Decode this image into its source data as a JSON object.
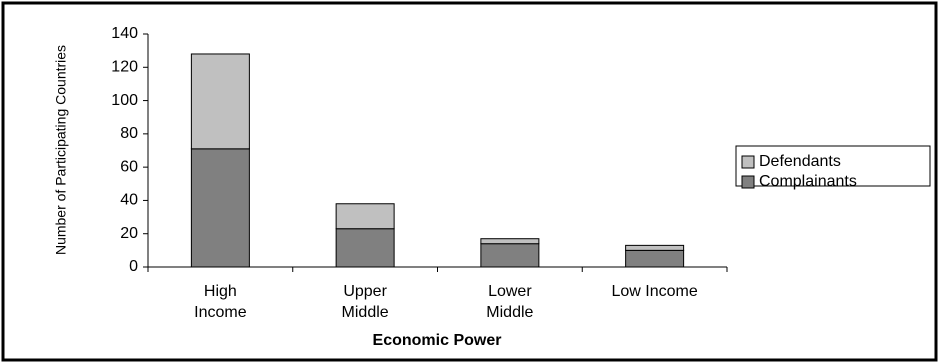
{
  "chart_data": {
    "type": "stacked_bar",
    "categories": [
      "High\nIncome",
      "Upper\nMiddle",
      "Lower\nMiddle",
      "Low Income"
    ],
    "series": [
      {
        "name": "Complainants",
        "color": "#808080",
        "values": [
          71,
          23,
          14,
          10
        ]
      },
      {
        "name": "Defendants",
        "color": "#c0c0c0",
        "values": [
          57,
          15,
          3,
          3
        ]
      }
    ],
    "x_label": "Economic Power",
    "y_label": "Number of Participating Countries",
    "ylim": [
      0,
      140
    ],
    "yticks": [
      0,
      20,
      40,
      60,
      80,
      100,
      120,
      140
    ],
    "legend": "right"
  }
}
